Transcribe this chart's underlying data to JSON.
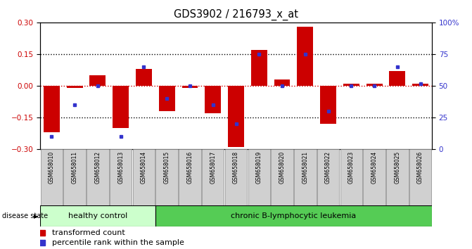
{
  "title": "GDS3902 / 216793_x_at",
  "samples": [
    "GSM658010",
    "GSM658011",
    "GSM658012",
    "GSM658013",
    "GSM658014",
    "GSM658015",
    "GSM658016",
    "GSM658017",
    "GSM658018",
    "GSM658019",
    "GSM658020",
    "GSM658021",
    "GSM658022",
    "GSM658023",
    "GSM658024",
    "GSM658025",
    "GSM658026"
  ],
  "red_values": [
    -0.22,
    -0.01,
    0.05,
    -0.2,
    0.08,
    -0.12,
    -0.01,
    -0.13,
    -0.29,
    0.17,
    0.03,
    0.28,
    -0.18,
    0.01,
    0.01,
    0.07,
    0.01
  ],
  "blue_values": [
    10,
    35,
    50,
    10,
    65,
    40,
    50,
    35,
    20,
    75,
    50,
    75,
    30,
    50,
    50,
    65,
    52
  ],
  "healthy_count": 5,
  "ylim_left": [
    -0.3,
    0.3
  ],
  "ylim_right": [
    0,
    100
  ],
  "yticks_left": [
    -0.3,
    -0.15,
    0.0,
    0.15,
    0.3
  ],
  "yticks_right": [
    0,
    25,
    50,
    75,
    100
  ],
  "ytick_labels_right": [
    "0",
    "25",
    "50",
    "75",
    "100%"
  ],
  "hline_vals": [
    -0.15,
    0.0,
    0.15
  ],
  "red_color": "#cc0000",
  "blue_color": "#3333cc",
  "healthy_bg": "#ccffcc",
  "leukemia_bg": "#55cc55",
  "label_box_color": "#d0d0d0",
  "disease_state_label": "disease state",
  "healthy_label": "healthy control",
  "leukemia_label": "chronic B-lymphocytic leukemia",
  "legend_red": "transformed count",
  "legend_blue": "percentile rank within the sample"
}
